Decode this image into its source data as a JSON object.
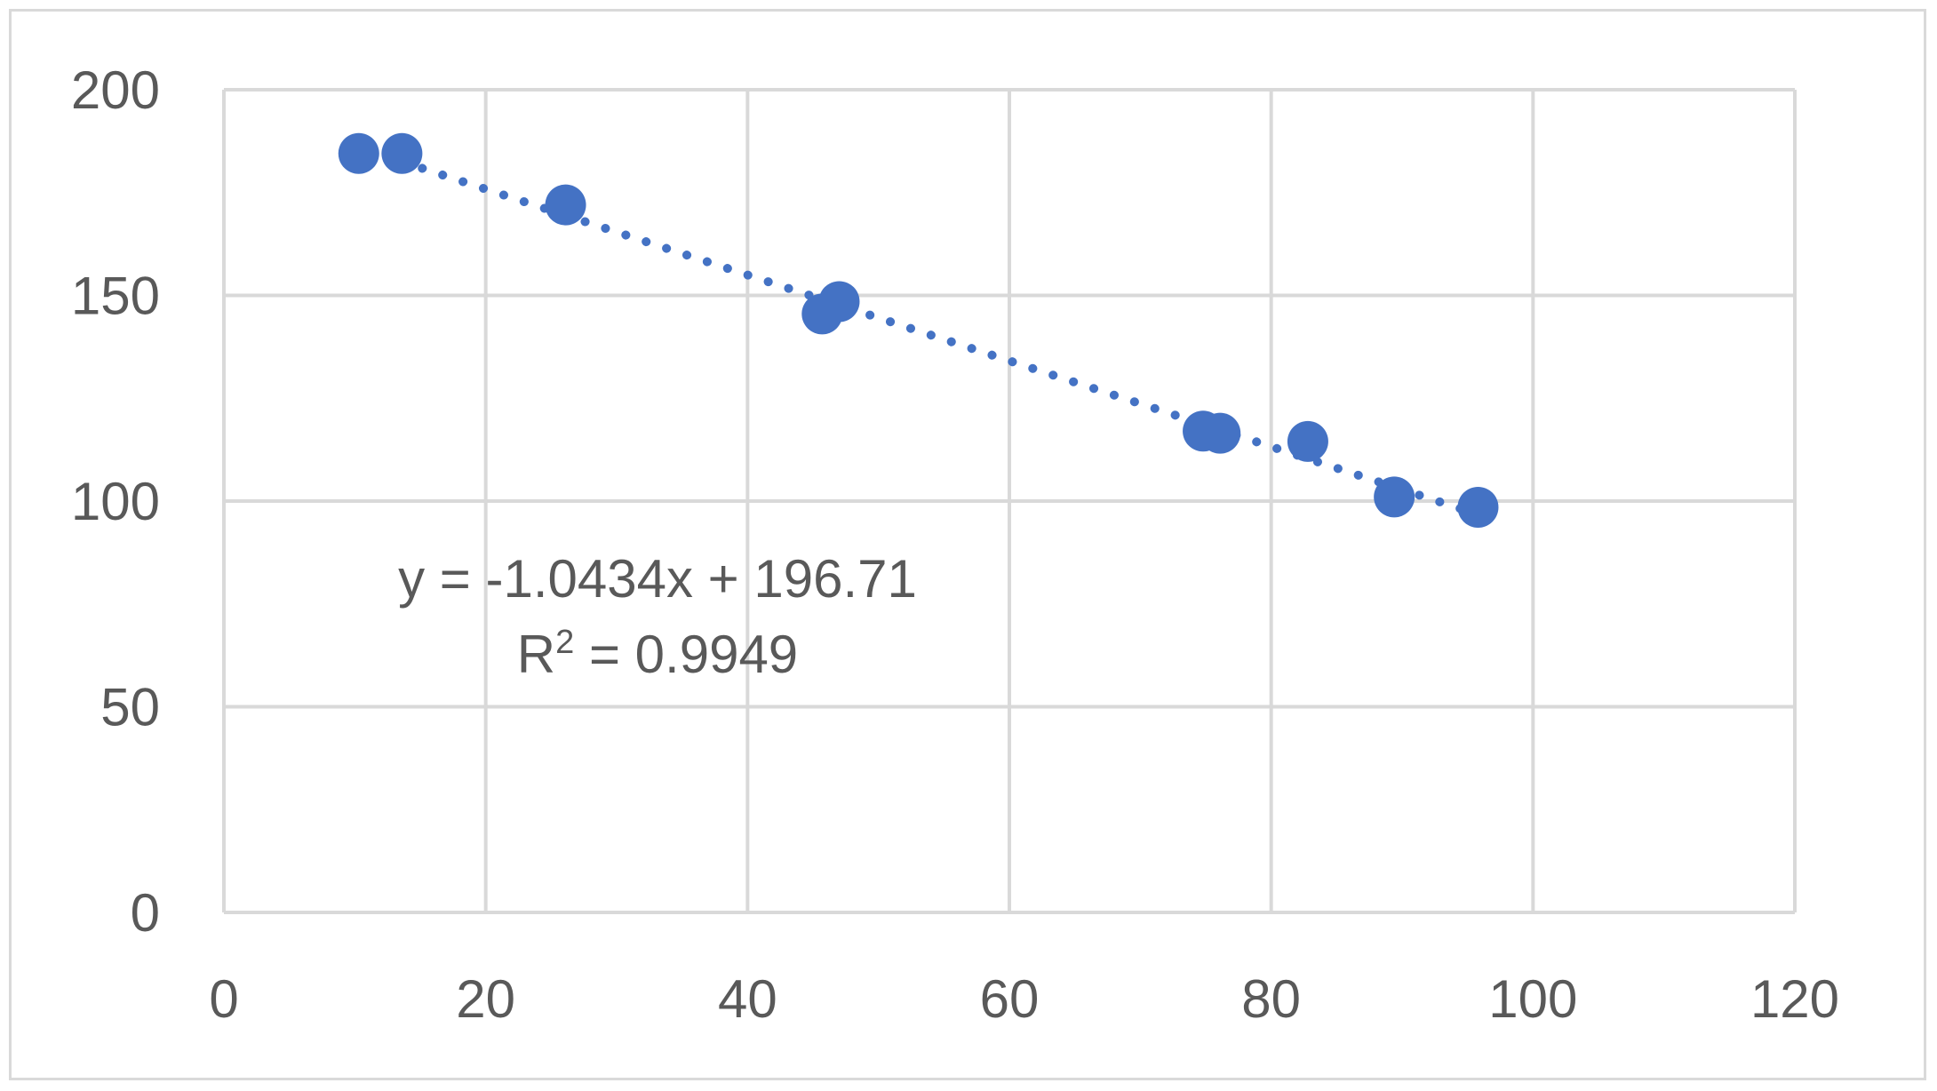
{
  "chart_data": {
    "type": "scatter",
    "title": "",
    "xlabel": "",
    "ylabel": "",
    "xlim": [
      0,
      120
    ],
    "ylim": [
      0,
      200
    ],
    "x_ticks": [
      "0",
      "20",
      "40",
      "60",
      "80",
      "100",
      "120"
    ],
    "y_ticks": [
      "0",
      "50",
      "100",
      "150",
      "200"
    ],
    "grid": true,
    "legend": "none",
    "marker_color": "#4472C4",
    "gridline_color": "#d9d9d9",
    "series": [
      {
        "x": [
          10.3,
          13.6,
          26.1,
          45.7,
          47.0,
          74.8,
          76.1,
          82.8,
          89.4,
          95.8
        ],
        "y": [
          184.5,
          184.5,
          172.0,
          145.5,
          148.5,
          117.0,
          116.5,
          114.5,
          101.0,
          98.5
        ]
      }
    ],
    "trendline": {
      "type": "linear",
      "style": "dotted",
      "slope": -1.0434,
      "intercept": 196.71,
      "x_range": [
        13.6,
        95.8
      ],
      "equation_label": "y = -1.0434x + 196.71",
      "r2_prefix": "R",
      "r2_super": "2",
      "r2_value": " = 0.9949"
    }
  }
}
